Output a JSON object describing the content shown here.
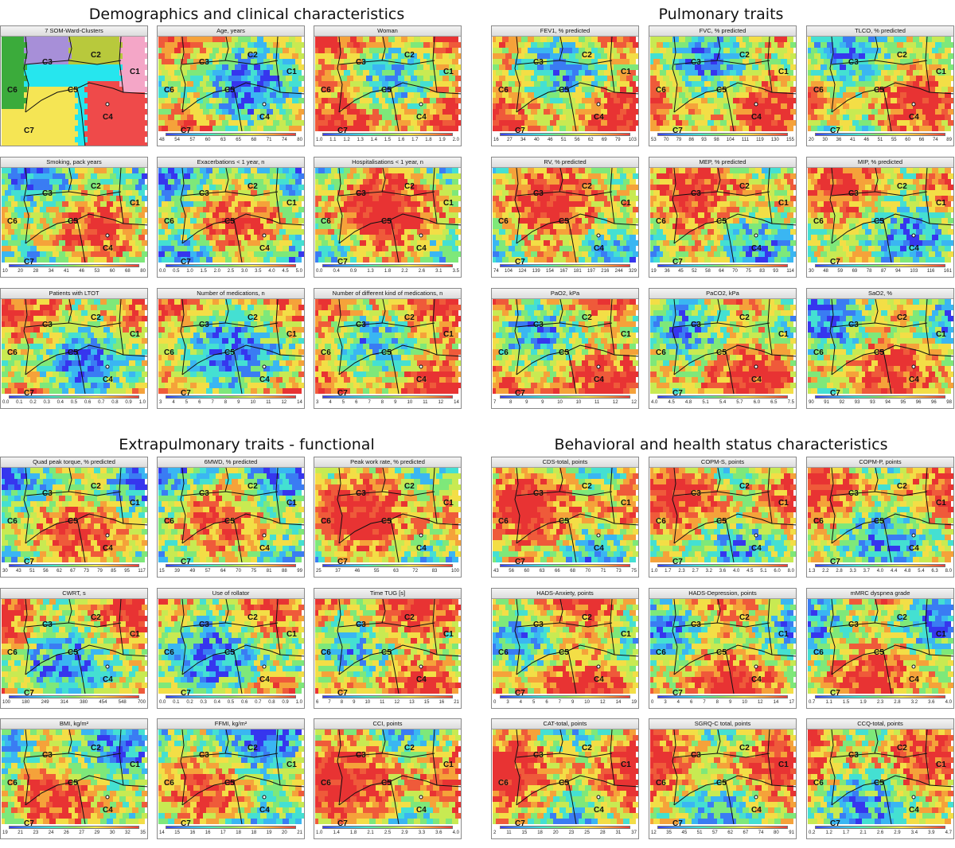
{
  "sections": [
    {
      "title": "Demographics and clinical characteristics"
    },
    {
      "title": "Pulmonary traits"
    },
    {
      "title": "Extrapulmonary traits - functional"
    },
    {
      "title": "Behavioral and health status characteristics"
    }
  ],
  "cluster_labels": [
    "C1",
    "C2",
    "C3",
    "C4",
    "C5",
    "C6",
    "C7"
  ],
  "colors": {
    "low": "#3b3bf0",
    "mid": "#7ee87a",
    "high": "#ef3a3a"
  },
  "chart_data": [
    {
      "type": "heatmap",
      "title": "7 SOM-Ward-Clusters",
      "cluster_map": true,
      "ticks": []
    },
    {
      "type": "heatmap",
      "title": "Age, years",
      "ticks": [
        "48",
        "54",
        "57",
        "60",
        "63",
        "65",
        "68",
        "71",
        "74",
        "80"
      ]
    },
    {
      "type": "heatmap",
      "title": "Woman",
      "ticks": [
        "1.0",
        "1.1",
        "1.2",
        "1.3",
        "1.4",
        "1.5",
        "1.6",
        "1.7",
        "1.8",
        "1.9",
        "2.0"
      ]
    },
    {
      "type": "heatmap",
      "title": "FEV1, % predicted",
      "ticks": [
        "16",
        "27",
        "34",
        "40",
        "46",
        "51",
        "56",
        "62",
        "69",
        "79",
        "103"
      ]
    },
    {
      "type": "heatmap",
      "title": "FVC, % predicted",
      "ticks": [
        "53",
        "70",
        "79",
        "86",
        "93",
        "98",
        "104",
        "111",
        "119",
        "130",
        "155"
      ]
    },
    {
      "type": "heatmap",
      "title": "TLCO, % predicted",
      "ticks": [
        "20",
        "30",
        "36",
        "41",
        "46",
        "51",
        "55",
        "60",
        "66",
        "74",
        "89"
      ]
    },
    {
      "type": "heatmap",
      "title": "Smoking, pack years",
      "ticks": [
        "10",
        "20",
        "28",
        "34",
        "41",
        "46",
        "53",
        "60",
        "68",
        "80"
      ]
    },
    {
      "type": "heatmap",
      "title": "Exacerbations < 1 year, n",
      "ticks": [
        "0.0",
        "0.5",
        "1.0",
        "1.5",
        "2.0",
        "2.5",
        "3.0",
        "3.5",
        "4.0",
        "4.5",
        "5.0"
      ]
    },
    {
      "type": "heatmap",
      "title": "Hospitalisations < 1 year, n",
      "ticks": [
        "0.0",
        "0.4",
        "0.9",
        "1.3",
        "1.8",
        "2.2",
        "2.6",
        "3.1",
        "3.5"
      ]
    },
    {
      "type": "heatmap",
      "title": "RV, % predicted",
      "ticks": [
        "74",
        "104",
        "124",
        "139",
        "154",
        "167",
        "181",
        "197",
        "216",
        "244",
        "329"
      ]
    },
    {
      "type": "heatmap",
      "title": "MEP, % predicted",
      "ticks": [
        "19",
        "36",
        "45",
        "52",
        "58",
        "64",
        "70",
        "75",
        "83",
        "93",
        "114"
      ]
    },
    {
      "type": "heatmap",
      "title": "MIP, % predicted",
      "ticks": [
        "30",
        "48",
        "59",
        "69",
        "78",
        "87",
        "94",
        "103",
        "116",
        "161"
      ]
    },
    {
      "type": "heatmap",
      "title": "Patients with LTOT",
      "ticks": [
        "0.0",
        "0.1",
        "0.2",
        "0.3",
        "0.4",
        "0.5",
        "0.6",
        "0.7",
        "0.8",
        "0.9",
        "1.0"
      ]
    },
    {
      "type": "heatmap",
      "title": "Number of medications, n",
      "ticks": [
        "3",
        "4",
        "5",
        "6",
        "7",
        "8",
        "9",
        "10",
        "11",
        "12",
        "14"
      ]
    },
    {
      "type": "heatmap",
      "title": "Number of different kind of medications, n",
      "ticks": [
        "3",
        "4",
        "5",
        "6",
        "7",
        "8",
        "9",
        "10",
        "11",
        "12",
        "14"
      ]
    },
    {
      "type": "heatmap",
      "title": "PaO2, kPa",
      "ticks": [
        "7",
        "8",
        "9",
        "9",
        "10",
        "10",
        "11",
        "12",
        "12"
      ]
    },
    {
      "type": "heatmap",
      "title": "PaCO2, kPa",
      "ticks": [
        "4.0",
        "4.5",
        "4.8",
        "5.1",
        "5.4",
        "5.7",
        "6.0",
        "6.5",
        "7.5"
      ]
    },
    {
      "type": "heatmap",
      "title": "SaO2, %",
      "ticks": [
        "90",
        "91",
        "92",
        "93",
        "93",
        "94",
        "95",
        "96",
        "96",
        "98"
      ]
    },
    {
      "type": "heatmap",
      "title": "Quad peak torque, % predicted",
      "ticks": [
        "30",
        "43",
        "51",
        "56",
        "62",
        "67",
        "73",
        "79",
        "85",
        "95",
        "117"
      ]
    },
    {
      "type": "heatmap",
      "title": "6MWD, % predicted",
      "ticks": [
        "15",
        "39",
        "49",
        "57",
        "64",
        "70",
        "75",
        "81",
        "88",
        "99"
      ]
    },
    {
      "type": "heatmap",
      "title": "Peak work rate, % predicted",
      "ticks": [
        "25",
        "37",
        "46",
        "55",
        "63",
        "72",
        "83",
        "100"
      ]
    },
    {
      "type": "heatmap",
      "title": "CDS-total, points",
      "ticks": [
        "43",
        "56",
        "60",
        "63",
        "66",
        "68",
        "70",
        "71",
        "73",
        "75"
      ]
    },
    {
      "type": "heatmap",
      "title": "COPM-S, points",
      "ticks": [
        "1.0",
        "1.7",
        "2.3",
        "2.7",
        "3.2",
        "3.6",
        "4.0",
        "4.5",
        "5.1",
        "6.0",
        "8.0"
      ]
    },
    {
      "type": "heatmap",
      "title": "COPM-P, points",
      "ticks": [
        "1.3",
        "2.2",
        "2.8",
        "3.3",
        "3.7",
        "4.0",
        "4.4",
        "4.8",
        "5.4",
        "6.3",
        "8.0"
      ]
    },
    {
      "type": "heatmap",
      "title": "CWRT, s",
      "ticks": [
        "100",
        "180",
        "249",
        "314",
        "380",
        "454",
        "548",
        "700"
      ]
    },
    {
      "type": "heatmap",
      "title": "Use of rollator",
      "ticks": [
        "0.0",
        "0.1",
        "0.2",
        "0.3",
        "0.4",
        "0.5",
        "0.6",
        "0.7",
        "0.8",
        "0.9",
        "1.0"
      ]
    },
    {
      "type": "heatmap",
      "title": "Time TUG [s]",
      "ticks": [
        "6",
        "7",
        "8",
        "9",
        "10",
        "11",
        "12",
        "13",
        "15",
        "16",
        "21"
      ]
    },
    {
      "type": "heatmap",
      "title": "HADS-Anxiety, points",
      "ticks": [
        "0",
        "3",
        "4",
        "5",
        "6",
        "7",
        "9",
        "10",
        "12",
        "14",
        "19"
      ]
    },
    {
      "type": "heatmap",
      "title": "HADS-Depression, points",
      "ticks": [
        "0",
        "3",
        "4",
        "6",
        "7",
        "8",
        "9",
        "10",
        "12",
        "14",
        "17"
      ]
    },
    {
      "type": "heatmap",
      "title": "mMRC dyspnea grade",
      "ticks": [
        "0.7",
        "1.1",
        "1.5",
        "1.9",
        "2.3",
        "2.8",
        "3.2",
        "3.6",
        "4.0"
      ]
    },
    {
      "type": "heatmap",
      "title": "BMI, kg/m²",
      "ticks": [
        "19",
        "21",
        "23",
        "24",
        "26",
        "27",
        "29",
        "30",
        "32",
        "35"
      ]
    },
    {
      "type": "heatmap",
      "title": "FFMI, kg/m²",
      "ticks": [
        "14",
        "15",
        "16",
        "16",
        "17",
        "18",
        "18",
        "19",
        "20",
        "21"
      ]
    },
    {
      "type": "heatmap",
      "title": "CCI, points",
      "ticks": [
        "1.0",
        "1.4",
        "1.8",
        "2.1",
        "2.5",
        "2.9",
        "3.3",
        "3.6",
        "4.0"
      ]
    },
    {
      "type": "heatmap",
      "title": "CAT-total, points",
      "ticks": [
        "2",
        "11",
        "15",
        "18",
        "20",
        "23",
        "25",
        "28",
        "31",
        "37"
      ]
    },
    {
      "type": "heatmap",
      "title": "SGRQ-C total, points",
      "ticks": [
        "12",
        "35",
        "45",
        "51",
        "57",
        "62",
        "67",
        "74",
        "80",
        "91"
      ]
    },
    {
      "type": "heatmap",
      "title": "CCQ-total, points",
      "ticks": [
        "0.2",
        "1.2",
        "1.7",
        "2.1",
        "2.6",
        "2.9",
        "3.4",
        "3.9",
        "4.7"
      ]
    }
  ]
}
